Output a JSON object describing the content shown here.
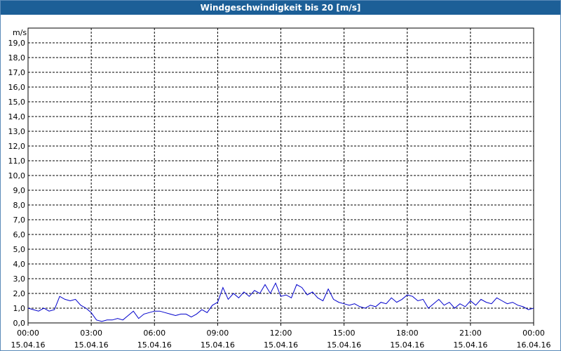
{
  "window": {
    "title": "Windgeschwindigkeit bis 20 [m/s]"
  },
  "chart_data": {
    "type": "line",
    "title": "Windgeschwindigkeit bis 20 [m/s]",
    "ylabel": "m/s",
    "xlabel": "",
    "ylim": [
      0,
      20
    ],
    "xlim_hours": [
      0,
      24
    ],
    "grid": true,
    "y_ticks": [
      "0,0",
      "1,0",
      "2,0",
      "3,0",
      "4,0",
      "5,0",
      "6,0",
      "7,0",
      "8,0",
      "9,0",
      "10,0",
      "11,0",
      "12,0",
      "13,0",
      "14,0",
      "15,0",
      "16,0",
      "17,0",
      "18,0",
      "19,0"
    ],
    "x_ticks": [
      {
        "time": "00:00",
        "date": "15.04.16"
      },
      {
        "time": "03:00",
        "date": "15.04.16"
      },
      {
        "time": "06:00",
        "date": "15.04.16"
      },
      {
        "time": "09:00",
        "date": "15.04.16"
      },
      {
        "time": "12:00",
        "date": "15.04.16"
      },
      {
        "time": "15:00",
        "date": "15.04.16"
      },
      {
        "time": "18:00",
        "date": "15.04.16"
      },
      {
        "time": "21:00",
        "date": "15.04.16"
      },
      {
        "time": "00:00",
        "date": "16.04.16"
      }
    ],
    "series": [
      {
        "color": "#0000cc",
        "x_hours": [
          0,
          0.25,
          0.5,
          0.75,
          1.0,
          1.25,
          1.5,
          1.75,
          2.0,
          2.25,
          2.5,
          2.75,
          3.0,
          3.25,
          3.5,
          3.75,
          4.0,
          4.25,
          4.5,
          4.75,
          5.0,
          5.25,
          5.5,
          5.75,
          6.0,
          6.25,
          6.5,
          6.75,
          7.0,
          7.25,
          7.5,
          7.75,
          8.0,
          8.25,
          8.5,
          8.75,
          9.0,
          9.25,
          9.5,
          9.75,
          10.0,
          10.25,
          10.5,
          10.75,
          11.0,
          11.25,
          11.5,
          11.75,
          12.0,
          12.25,
          12.5,
          12.75,
          13.0,
          13.25,
          13.5,
          13.75,
          14.0,
          14.25,
          14.5,
          14.75,
          15.0,
          15.25,
          15.5,
          15.75,
          16.0,
          16.25,
          16.5,
          16.75,
          17.0,
          17.25,
          17.5,
          17.75,
          18.0,
          18.25,
          18.5,
          18.75,
          19.0,
          19.25,
          19.5,
          19.75,
          20.0,
          20.25,
          20.5,
          20.75,
          21.0,
          21.25,
          21.5,
          21.75,
          22.0,
          22.25,
          22.5,
          22.75,
          23.0,
          23.25,
          23.5,
          23.75,
          24.0
        ],
        "values": [
          1.0,
          0.9,
          0.8,
          1.0,
          0.8,
          0.9,
          1.8,
          1.6,
          1.5,
          1.6,
          1.2,
          1.0,
          0.7,
          0.2,
          0.1,
          0.2,
          0.2,
          0.3,
          0.2,
          0.5,
          0.8,
          0.3,
          0.6,
          0.7,
          0.8,
          0.8,
          0.7,
          0.6,
          0.5,
          0.6,
          0.6,
          0.4,
          0.6,
          0.9,
          0.7,
          1.2,
          1.4,
          2.4,
          1.6,
          2.0,
          1.7,
          2.1,
          1.8,
          2.2,
          2.0,
          2.6,
          2.0,
          2.7,
          1.8,
          1.9,
          1.7,
          2.6,
          2.4,
          1.9,
          2.1,
          1.7,
          1.5,
          2.3,
          1.6,
          1.4,
          1.3,
          1.2,
          1.3,
          1.1,
          1.0,
          1.2,
          1.1,
          1.4,
          1.3,
          1.7,
          1.4,
          1.6,
          1.9,
          1.8,
          1.5,
          1.6,
          1.0,
          1.3,
          1.6,
          1.2,
          1.4,
          1.0,
          1.3,
          1.1,
          1.5,
          1.2,
          1.6,
          1.4,
          1.3,
          1.7,
          1.5,
          1.3,
          1.4,
          1.2,
          1.1,
          0.9,
          1.0
        ]
      }
    ]
  }
}
